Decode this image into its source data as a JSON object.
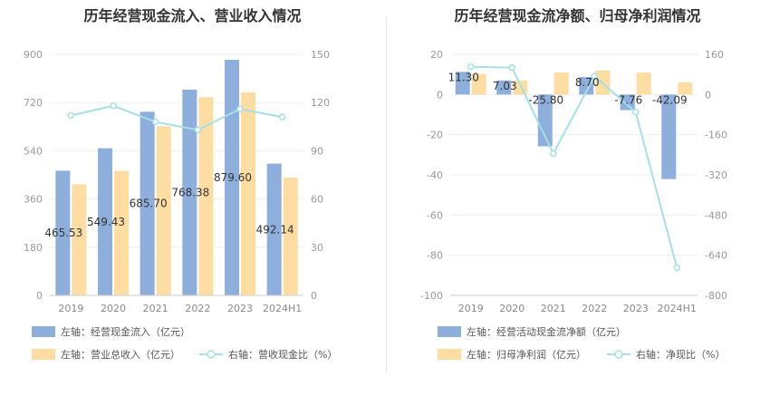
{
  "colors": {
    "bar_primary": "#8eaedc",
    "bar_secondary": "#fedda3",
    "line": "#a4e0e6",
    "grid": "#eeeeee",
    "axis": "#cccccc"
  },
  "charts": [
    {
      "title": "历年经营现金流入、营业收入情况",
      "legend": [
        {
          "label": "左轴：经营现金流入（亿元）",
          "kind": "bar",
          "color": "#8eaedc"
        },
        {
          "label": "左轴：营业总收入（亿元）",
          "kind": "bar",
          "color": "#fedda3"
        },
        {
          "label": "右轴：营收现金比（%）",
          "kind": "line",
          "color": "#a4e0e6"
        }
      ]
    },
    {
      "title": "历年经营现金流净额、归母净利润情况",
      "legend": [
        {
          "label": "左轴：经营活动现金流净额（亿元）",
          "kind": "bar",
          "color": "#8eaedc"
        },
        {
          "label": "左轴：归母净利润（亿元）",
          "kind": "bar",
          "color": "#fedda3"
        },
        {
          "label": "右轴：净现比（%）",
          "kind": "line",
          "color": "#a4e0e6"
        }
      ]
    }
  ],
  "chart_data": [
    {
      "type": "bar",
      "title": "历年经营现金流入、营业收入情况",
      "categories": [
        "2019",
        "2020",
        "2021",
        "2022",
        "2023",
        "2024H1"
      ],
      "series": [
        {
          "name": "左轴：经营现金流入（亿元）",
          "axis": "left",
          "values": [
            465.53,
            549.43,
            685.7,
            768.38,
            879.6,
            492.14
          ],
          "labels": [
            "465.53",
            "549.43",
            "685.70",
            "768.38",
            "879.60",
            "492.14"
          ]
        },
        {
          "name": "左轴：营业总收入（亿元）",
          "axis": "left",
          "values": [
            415,
            465,
            632,
            740,
            758,
            440
          ]
        },
        {
          "name": "右轴：营收现金比（%）",
          "axis": "right",
          "type": "line",
          "values": [
            112,
            118,
            108,
            103,
            116,
            111
          ]
        }
      ],
      "left_axis": {
        "min": 0,
        "max": 900,
        "ticks": [
          0,
          180,
          360,
          540,
          720,
          900
        ]
      },
      "right_axis": {
        "min": 0,
        "max": 150,
        "ticks": [
          0,
          30,
          60,
          90,
          120,
          150
        ]
      },
      "grid": true,
      "legend_position": "bottom"
    },
    {
      "type": "bar",
      "title": "历年经营现金流净额、归母净利润情况",
      "categories": [
        "2019",
        "2020",
        "2021",
        "2022",
        "2023",
        "2024H1"
      ],
      "series": [
        {
          "name": "左轴：经营活动现金流净额（亿元）",
          "axis": "left",
          "values": [
            11.3,
            7.03,
            -25.8,
            8.7,
            -7.76,
            -42.09
          ],
          "labels": [
            "11.30",
            "7.03",
            "-25.80",
            "8.70",
            "-7.76",
            "-42.09"
          ]
        },
        {
          "name": "左轴：归母净利润（亿元）",
          "axis": "left",
          "values": [
            10.2,
            7.0,
            11.0,
            12.0,
            11.0,
            6.0
          ]
        },
        {
          "name": "右轴：净现比（%）",
          "axis": "right",
          "type": "line",
          "values": [
            111,
            107,
            -235,
            73,
            -70,
            -690
          ]
        }
      ],
      "left_axis": {
        "min": -100,
        "max": 20,
        "ticks": [
          -100,
          -80,
          -60,
          -40,
          -20,
          0,
          20
        ]
      },
      "right_axis": {
        "min": -800,
        "max": 160,
        "ticks": [
          -800,
          -640,
          -480,
          -320,
          -160,
          0,
          160
        ]
      },
      "grid": true,
      "legend_position": "bottom"
    }
  ]
}
